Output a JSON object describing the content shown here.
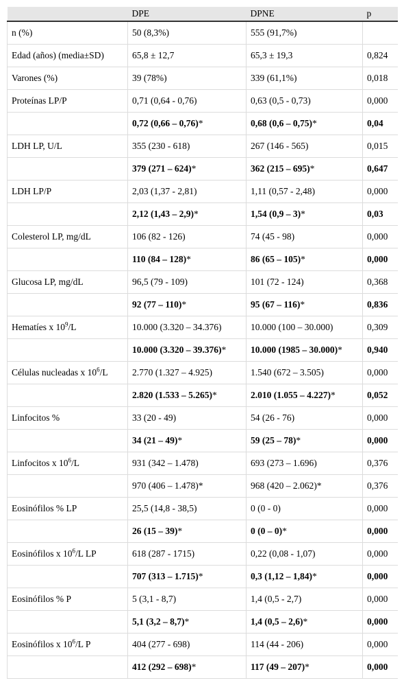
{
  "header": [
    "",
    "DPE",
    "DPNE",
    "p"
  ],
  "rows": [
    {
      "label": "n (%)",
      "dpe": "50 (8,3%)",
      "dpne": "555 (91,7%)",
      "p": ""
    },
    {
      "label": "Edad (años) (media±SD)",
      "dpe": "65,8 ± 12,7",
      "dpne": "65,3 ± 19,3",
      "p": "0,824"
    },
    {
      "label": "Varones (%)",
      "dpe": "39 (78%)",
      "dpne": "339 (61,1%)",
      "p": "0,018"
    },
    {
      "label": "Proteínas LP/P",
      "dpe": "0,71 (0,64 - 0,76)",
      "dpne": "0,63 (0,5 - 0,73)",
      "p": "0,000"
    },
    {
      "label": "",
      "dpe": "0,72 (0,66 – 0,76)",
      "dpne": "0,68 (0,6 – 0,75)",
      "p": "0,04",
      "bold": true,
      "star": true
    },
    {
      "label": "LDH LP, U/L",
      "dpe": "355 (230 - 618)",
      "dpne": "267 (146 - 565)",
      "p": "0,015"
    },
    {
      "label": "",
      "dpe": "379 (271 – 624)",
      "dpne": "362 (215 – 695)",
      "p": "0,647",
      "bold": true,
      "star": true
    },
    {
      "label": "LDH LP/P",
      "dpe": "2,03 (1,37 - 2,81)",
      "dpne": "1,11 (0,57 - 2,48)",
      "p": "0,000"
    },
    {
      "label": "",
      "dpe": "2,12 (1,43 – 2,9)",
      "dpne": "1,54 (0,9 – 3)",
      "p": "0,03",
      "bold": true,
      "star": true
    },
    {
      "label": "Colesterol LP, mg/dL",
      "dpe": "106 (82 - 126)",
      "dpne": "74 (45 - 98)",
      "p": "0,000"
    },
    {
      "label": "",
      "dpe": "110 (84 – 128)",
      "dpne": "86 (65 – 105)",
      "p": "0,000",
      "bold": true,
      "star": true
    },
    {
      "label": "Glucosa LP, mg/dL",
      "dpe": "96,5 (79 - 109)",
      "dpne": "101 (72 - 124)",
      "p": "0,368"
    },
    {
      "label": "",
      "dpe": "92 (77 – 110)",
      "dpne": "95 (67 – 116)",
      "p": "0,836",
      "bold": true,
      "star": true
    },
    {
      "label": "Hematíes x 10",
      "sup": "9",
      "after": "/L",
      "dpe": "10.000 (3.320 – 34.376)",
      "dpne": "10.000 (100 – 30.000)",
      "p": "0,309"
    },
    {
      "label": "",
      "dpe": "10.000 (3.320 – 39.376)",
      "dpne": "10.000 (1985 – 30.000)",
      "p": "0,940",
      "bold": true,
      "star": true
    },
    {
      "label": "Células nucleadas x 10",
      "sup": "6",
      "after": "/L",
      "dpe": "2.770 (1.327 – 4.925)",
      "dpne": "1.540 (672 – 3.505)",
      "p": "0,000"
    },
    {
      "label": "",
      "dpe": "2.820 (1.533 – 5.265)",
      "dpne": "2.010 (1.055 – 4.227)",
      "p": "0,052",
      "bold": true,
      "star": true
    },
    {
      "label": "Linfocitos %",
      "dpe": "33 (20 - 49)",
      "dpne": "54 (26 - 76)",
      "p": "0,000"
    },
    {
      "label": "",
      "dpe": "34 (21 – 49)",
      "dpne": "59 (25 – 78)",
      "p": "0,000",
      "bold": true,
      "star": true
    },
    {
      "label": "Linfocitos x 10",
      "sup": "6",
      "after": "/L",
      "dpe": "931 (342 – 1.478)",
      "dpne": "693 (273 – 1.696)",
      "p": "0,376"
    },
    {
      "label": "",
      "dpe": "970 (406 – 1.478)",
      "dpne": "968 (420 – 2.062)",
      "p": "0,376",
      "bold": false,
      "star": true
    },
    {
      "label": "Eosinófilos % LP",
      "dpe": "25,5 (14,8 - 38,5)",
      "dpne": "0 (0 - 0)",
      "p": "0,000"
    },
    {
      "label": "",
      "dpe": "26 (15 – 39)",
      "dpne": "0 (0 – 0)",
      "p": "0,000",
      "bold": true,
      "star": true
    },
    {
      "label": "Eosinófilos x 10",
      "sup": "6",
      "after": "/L LP",
      "dpe": "618 (287 - 1715)",
      "dpne": "0,22 (0,08 - 1,07)",
      "p": "0,000"
    },
    {
      "label": "",
      "dpe": "707 (313 – 1.715)",
      "dpne": "0,3 (1,12 – 1,84)",
      "p": "0,000",
      "bold": true,
      "star": true
    },
    {
      "label": "Eosinófilos % P",
      "dpe": "5 (3,1 - 8,7)",
      "dpne": "1,4 (0,5 - 2,7)",
      "p": "0,000"
    },
    {
      "label": "",
      "dpe": "5,1 (3,2 – 8,7)",
      "dpne": "1,4 (0,5 – 2,6)",
      "p": "0,000",
      "bold": true,
      "star": true
    },
    {
      "label": "Eosinófilos x 10",
      "sup": "6",
      "after": "/L P",
      "dpe": "404 (277 - 698)",
      "dpne": "114 (44 - 206)",
      "p": "0,000"
    },
    {
      "label": "",
      "dpe": "412 (292 – 698)",
      "dpne": "117 (49 – 207)",
      "p": "0,000",
      "bold": true,
      "star": true
    }
  ]
}
